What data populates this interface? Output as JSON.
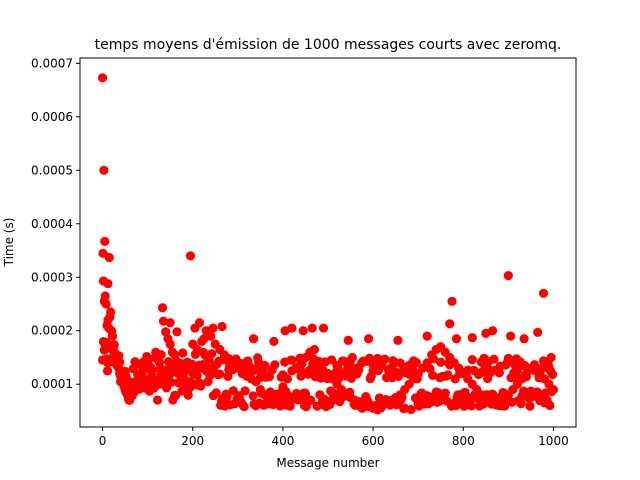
{
  "chart_data": {
    "type": "scatter",
    "title": "temps moyens d'émission de 1000 messages courts avec zeromq.",
    "xlabel": "Message number",
    "ylabel": "Time (s)",
    "xlim": [
      -50,
      1050
    ],
    "ylim": [
      2e-05,
      0.00071
    ],
    "xticks": [
      0,
      200,
      400,
      600,
      800,
      1000
    ],
    "yticks": [
      0.0001,
      0.0002,
      0.0003,
      0.0004,
      0.0005,
      0.0006,
      0.0007
    ],
    "xtick_labels": [
      "0",
      "200",
      "400",
      "600",
      "800",
      "1000"
    ],
    "ytick_labels": [
      "0.0001",
      "0.0002",
      "0.0003",
      "0.0004",
      "0.0005",
      "0.0006",
      "0.0007"
    ],
    "marker_color": "#ff0000",
    "marker": "circle",
    "n_points": 1000,
    "notable_points": [
      {
        "x": 0,
        "y": 0.000673
      },
      {
        "x": 3,
        "y": 0.0005
      },
      {
        "x": 1,
        "y": 0.000345
      },
      {
        "x": 5,
        "y": 0.000367
      },
      {
        "x": 15,
        "y": 0.000337
      },
      {
        "x": 2,
        "y": 0.000293
      },
      {
        "x": 12,
        "y": 0.000288
      },
      {
        "x": 195,
        "y": 0.00034
      },
      {
        "x": 133,
        "y": 0.000243
      },
      {
        "x": 775,
        "y": 0.000255
      },
      {
        "x": 900,
        "y": 0.000303
      },
      {
        "x": 978,
        "y": 0.00027
      }
    ],
    "bulk_points": [
      [
        4,
        0.000255
      ],
      [
        6,
        0.000265
      ],
      [
        8,
        0.00025
      ],
      [
        10,
        0.00021
      ],
      [
        12,
        0.00022
      ],
      [
        14,
        0.000205
      ],
      [
        16,
        0.000225
      ],
      [
        18,
        0.000235
      ],
      [
        20,
        0.0002
      ],
      [
        9,
        0.000178
      ],
      [
        11,
        0.000125
      ],
      [
        22,
        0.00019
      ],
      [
        24,
        0.00017
      ],
      [
        26,
        0.00016
      ],
      [
        28,
        0.000155
      ],
      [
        30,
        0.00015
      ],
      [
        32,
        0.000135
      ],
      [
        34,
        0.000145
      ],
      [
        36,
        0.00013
      ],
      [
        38,
        0.00012
      ],
      [
        40,
        0.000115
      ],
      [
        42,
        0.00011
      ],
      [
        44,
        0.000105
      ],
      [
        46,
        0.0001
      ],
      [
        48,
        9.5e-05
      ],
      [
        50,
        9e-05
      ],
      [
        52,
        8.5e-05
      ],
      [
        55,
        8e-05
      ],
      [
        58,
        7.5e-05
      ],
      [
        60,
        7e-05
      ],
      [
        63,
        7.8e-05
      ],
      [
        66,
        9.5e-05
      ],
      [
        70,
        8.5e-05
      ],
      [
        75,
        9e-05
      ],
      [
        80,
        0.0001
      ],
      [
        85,
        0.000105
      ],
      [
        90,
        9.5e-05
      ],
      [
        95,
        0.00011
      ],
      [
        100,
        0.0001
      ],
      [
        105,
        0.000108
      ],
      [
        110,
        0.000115
      ],
      [
        115,
        9.5e-05
      ],
      [
        120,
        0.000105
      ],
      [
        125,
        0.0001
      ],
      [
        130,
        0.00012
      ],
      [
        140,
        0.000198
      ],
      [
        145,
        0.000185
      ],
      [
        150,
        0.000175
      ],
      [
        155,
        0.00016
      ],
      [
        160,
        0.000155
      ],
      [
        165,
        0.00014
      ],
      [
        170,
        0.00013
      ],
      [
        175,
        0.000125
      ],
      [
        180,
        0.00011
      ],
      [
        185,
        0.0001
      ],
      [
        190,
        9e-05
      ],
      [
        200,
        0.000175
      ],
      [
        210,
        0.000165
      ],
      [
        220,
        0.00018
      ],
      [
        230,
        0.0002
      ],
      [
        240,
        0.00019
      ],
      [
        250,
        0.000175
      ],
      [
        260,
        0.000165
      ],
      [
        270,
        0.000155
      ],
      [
        280,
        0.000148
      ],
      [
        290,
        0.000138
      ],
      [
        300,
        0.00013
      ],
      [
        310,
        0.00012
      ],
      [
        320,
        0.000115
      ],
      [
        330,
        0.00011
      ],
      [
        340,
        0.000105
      ],
      [
        350,
        9e-05
      ],
      [
        360,
        8e-05
      ],
      [
        370,
        7.8e-05
      ],
      [
        380,
        7e-05
      ],
      [
        390,
        8e-05
      ],
      [
        400,
        9.5e-05
      ],
      [
        410,
        0.00011
      ],
      [
        420,
        0.000125
      ],
      [
        430,
        0.00013
      ],
      [
        440,
        0.00014
      ],
      [
        450,
        0.00015
      ],
      [
        460,
        0.00016
      ],
      [
        470,
        0.000165
      ],
      [
        480,
        0.00014
      ],
      [
        490,
        0.000125
      ],
      [
        500,
        0.00012
      ],
      [
        510,
        0.00011
      ],
      [
        520,
        0.0001
      ],
      [
        530,
        9e-05
      ],
      [
        540,
        8e-05
      ],
      [
        550,
        7.5e-05
      ],
      [
        560,
        7e-05
      ],
      [
        570,
        6.5e-05
      ],
      [
        580,
        6e-05
      ],
      [
        590,
        5.8e-05
      ],
      [
        600,
        5.5e-05
      ],
      [
        610,
        5.2e-05
      ],
      [
        620,
        6e-05
      ],
      [
        630,
        6.5e-05
      ],
      [
        640,
        7e-05
      ],
      [
        650,
        7.5e-05
      ],
      [
        660,
        8e-05
      ],
      [
        670,
        9e-05
      ],
      [
        680,
        0.0001
      ],
      [
        690,
        0.00011
      ],
      [
        700,
        0.00012
      ],
      [
        710,
        0.00013
      ],
      [
        720,
        0.00014
      ],
      [
        730,
        0.000155
      ],
      [
        740,
        0.000165
      ],
      [
        750,
        0.00017
      ],
      [
        760,
        0.00016
      ],
      [
        770,
        0.00015
      ],
      [
        780,
        0.00014
      ],
      [
        790,
        0.00013
      ],
      [
        800,
        0.00012
      ],
      [
        810,
        0.00011
      ],
      [
        820,
        0.0001
      ],
      [
        830,
        9e-05
      ],
      [
        840,
        8e-05
      ],
      [
        850,
        7.5e-05
      ],
      [
        860,
        7e-05
      ],
      [
        870,
        6.5e-05
      ],
      [
        880,
        6e-05
      ],
      [
        890,
        7e-05
      ],
      [
        900,
        8e-05
      ],
      [
        910,
        9e-05
      ],
      [
        920,
        0.0001
      ],
      [
        930,
        0.00011
      ],
      [
        940,
        0.00012
      ],
      [
        950,
        0.00013
      ],
      [
        960,
        0.000125
      ],
      [
        970,
        0.00012
      ],
      [
        980,
        0.00011
      ],
      [
        990,
        0.0001
      ],
      [
        1000,
        9e-05
      ],
      [
        135,
        0.000218
      ],
      [
        150,
        0.000215
      ],
      [
        165,
        0.000198
      ],
      [
        205,
        0.000205
      ],
      [
        215,
        0.000215
      ],
      [
        225,
        0.000185
      ],
      [
        245,
        0.000205
      ],
      [
        265,
        0.000208
      ],
      [
        335,
        0.000185
      ],
      [
        380,
        0.00018
      ],
      [
        405,
        0.0002
      ],
      [
        420,
        0.000205
      ],
      [
        445,
        0.0002
      ],
      [
        465,
        0.000205
      ],
      [
        490,
        0.000205
      ],
      [
        545,
        0.000182
      ],
      [
        590,
        0.000185
      ],
      [
        655,
        0.000182
      ],
      [
        720,
        0.00019
      ],
      [
        770,
        0.000213
      ],
      [
        785,
        0.000185
      ],
      [
        820,
        0.000187
      ],
      [
        850,
        0.000195
      ],
      [
        865,
        0.0002
      ],
      [
        905,
        0.00019
      ],
      [
        935,
        0.000185
      ],
      [
        965,
        0.000197
      ],
      [
        995,
        0.00015
      ],
      [
        600,
        0.000125
      ],
      [
        640,
        0.00013
      ],
      [
        680,
        0.000135
      ],
      [
        560,
        0.00013
      ],
      [
        520,
        0.000135
      ],
      [
        480,
        0.00013
      ],
      [
        440,
        0.000125
      ],
      [
        360,
        0.000135
      ],
      [
        320,
        0.00014
      ],
      [
        280,
        0.000145
      ]
    ]
  }
}
